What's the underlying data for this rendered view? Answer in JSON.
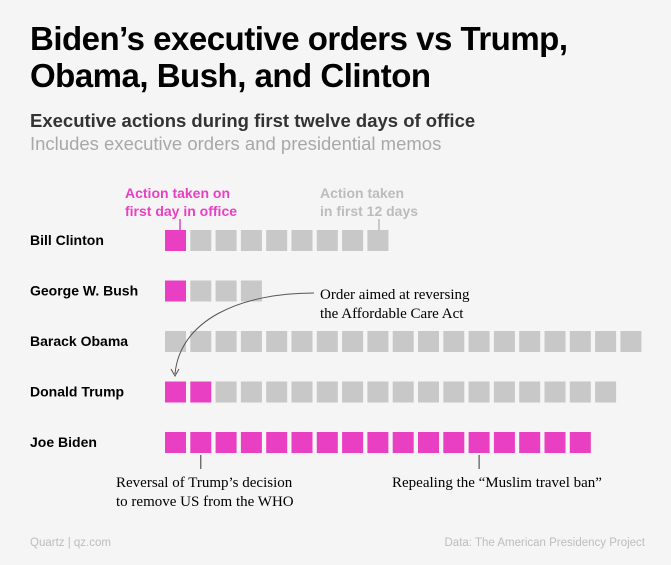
{
  "title": "Biden’s executive orders vs Trump, Obama, Bush, and Clinton",
  "subtitle": "Executive actions during first twelve days of office",
  "subnote": "Includes executive orders and presidential memos",
  "legend": {
    "first_day": [
      "Action taken on",
      "first day in office"
    ],
    "first_12": [
      "Action taken",
      "in first 12 days"
    ]
  },
  "colors": {
    "first_day": "#e83fc3",
    "first_12": "#c8c8c8",
    "background": "#f5f5f5"
  },
  "chart_data": {
    "type": "waffle",
    "series": [
      {
        "name": "Action taken on first day in office"
      },
      {
        "name": "Action taken in first 12 days"
      }
    ],
    "rows": [
      {
        "label": "Bill Clinton",
        "first_day": 1,
        "total": 9
      },
      {
        "label": "George W. Bush",
        "first_day": 1,
        "total": 4
      },
      {
        "label": "Barack Obama",
        "first_day": 0,
        "total": 19
      },
      {
        "label": "Donald Trump",
        "first_day": 2,
        "total": 18
      },
      {
        "label": "Joe Biden",
        "first_day": 17,
        "total": 17
      }
    ],
    "annotations": [
      {
        "lines": [
          "Order aimed at reversing",
          "the Affordable Care Act"
        ],
        "row": 3,
        "square": 0
      },
      {
        "lines": [
          "Reversal of Trump’s decision",
          "to remove US from the WHO"
        ],
        "row": 4,
        "square": 1
      },
      {
        "lines": [
          "Repealing the “Muslim travel ban”"
        ],
        "row": 4,
        "square": 12
      }
    ]
  },
  "footer": {
    "source_left": "Quartz | qz.com",
    "source_right": "Data: The American Presidency Project"
  }
}
